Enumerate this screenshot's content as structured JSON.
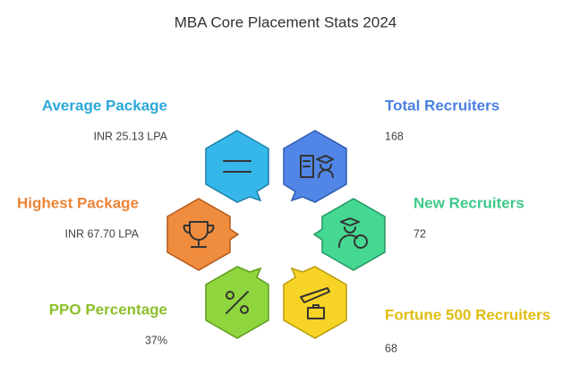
{
  "title": "MBA Core Placement Stats 2024",
  "items": [
    {
      "label": "Average Package",
      "value": "INR 25.13 LPA"
    },
    {
      "label": "Total Recruiters",
      "value": "168"
    },
    {
      "label": "Highest Package",
      "value": "INR 67.70 LPA"
    },
    {
      "label": "New Recruiters",
      "value": "72"
    },
    {
      "label": "PPO Percentage",
      "value": "37%"
    },
    {
      "label": "Fortune 500 Recruiters",
      "value": "68"
    }
  ]
}
